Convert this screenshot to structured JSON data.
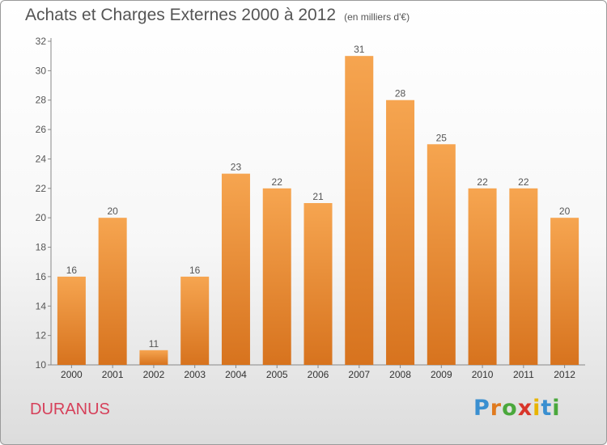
{
  "title": "Achats et Charges Externes 2000 à 2012",
  "unit": "(en milliers d'€)",
  "town": "DURANUS",
  "logo": {
    "text": "Proxiti",
    "colors": [
      "#3a8fd0",
      "#e07a1f",
      "#4aa83c",
      "#d8352a",
      "#e8b400",
      "#3a8fd0",
      "#4aa83c"
    ]
  },
  "colors": {
    "bar_top": "#f6a550",
    "bar_bottom": "#d7731e",
    "axis": "#888888",
    "text": "#555555",
    "town": "#d6405a"
  },
  "chart_data": {
    "type": "bar",
    "categories": [
      "2000",
      "2001",
      "2002",
      "2003",
      "2004",
      "2005",
      "2006",
      "2007",
      "2008",
      "2009",
      "2010",
      "2011",
      "2012"
    ],
    "values": [
      16,
      20,
      11,
      16,
      23,
      22,
      21,
      31,
      28,
      25,
      22,
      22,
      20
    ],
    "ylim": [
      10,
      32
    ],
    "yticks": [
      10,
      12,
      14,
      16,
      18,
      20,
      22,
      24,
      26,
      28,
      30,
      32
    ],
    "grid": false
  }
}
